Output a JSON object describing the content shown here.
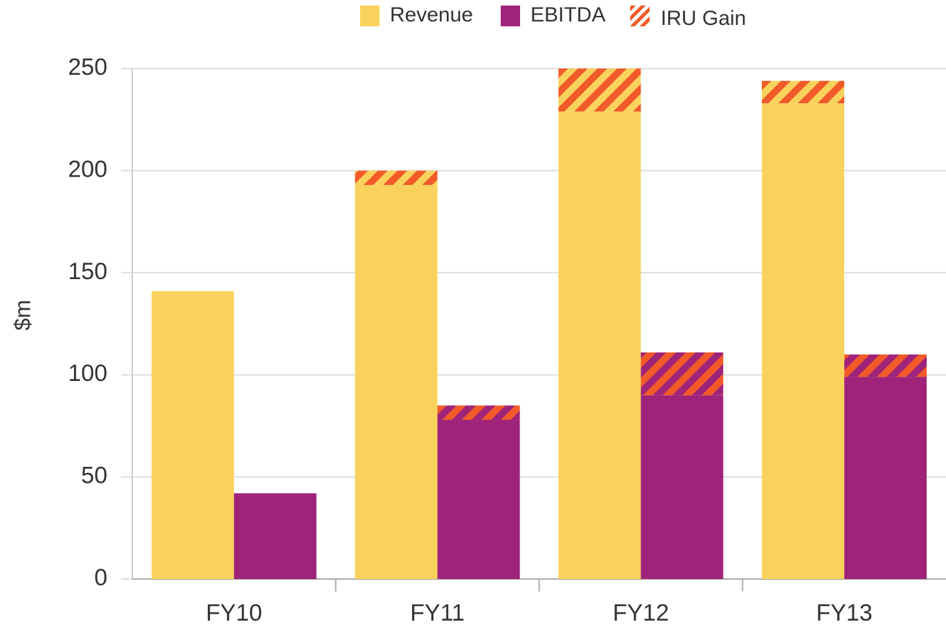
{
  "chart_data": {
    "type": "bar",
    "y_label": "$m",
    "categories": [
      "FY10",
      "FY11",
      "FY12",
      "FY13"
    ],
    "series": [
      {
        "name": "Revenue",
        "color": "#f9d25e",
        "values": [
          141,
          193,
          229,
          233
        ]
      },
      {
        "name": "EBITDA",
        "color": "#a0237a",
        "values": [
          42,
          78,
          90,
          99
        ]
      },
      {
        "name": "IRU Gain",
        "color": "#f15a29",
        "values": [
          0,
          7,
          21,
          11
        ],
        "ebitda_values": [
          0,
          7,
          21,
          11
        ]
      }
    ],
    "ylim": [
      0,
      250
    ],
    "yticks": [
      0,
      50,
      100,
      150,
      200,
      250
    ],
    "grid": true,
    "legend": "top"
  }
}
